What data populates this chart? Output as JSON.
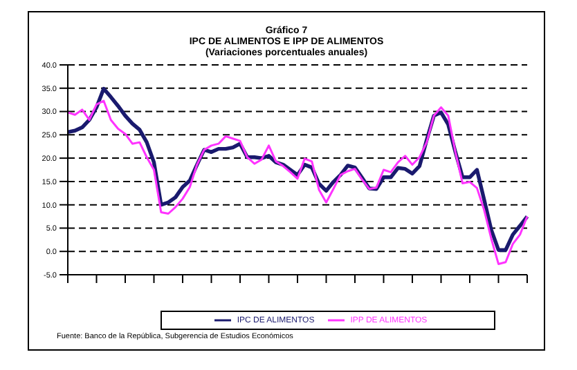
{
  "chart_data": {
    "type": "line",
    "title": "Gráfico 7",
    "subtitle": "IPC DE ALIMENTOS E IPP DE ALIMENTOS\n(Variaciones porcentuales anuales)",
    "categories": [
      null,
      null,
      null,
      null,
      null,
      null,
      null,
      null,
      null,
      null,
      null,
      null,
      null,
      null,
      null,
      null,
      null,
      null,
      null,
      null,
      null,
      null,
      null,
      null,
      null,
      null,
      null,
      null,
      null,
      null,
      null,
      null,
      null,
      null,
      null,
      null,
      null,
      null,
      null,
      null,
      null,
      null,
      null,
      null,
      null,
      null,
      null,
      null,
      null,
      null,
      null,
      null,
      null,
      null,
      null,
      null,
      null,
      null,
      null,
      null,
      null,
      null,
      null,
      null,
      null
    ],
    "series": [
      {
        "name": "IPC DE ALIMENTOS",
        "color": "#1a1a6e",
        "values": [
          25.6,
          25.9,
          26.6,
          28.2,
          30.9,
          34.9,
          33.1,
          31.2,
          29.1,
          27.4,
          26.1,
          23.4,
          19.1,
          10.0,
          10.5,
          11.6,
          13.8,
          15.2,
          18.6,
          21.8,
          21.3,
          22.0,
          22.0,
          22.3,
          23.1,
          20.2,
          20.2,
          20.0,
          20.5,
          19.1,
          18.6,
          17.5,
          16.4,
          18.6,
          18.0,
          14.5,
          13.0,
          14.9,
          16.4,
          18.4,
          18.0,
          15.8,
          13.5,
          13.4,
          15.9,
          15.9,
          17.9,
          17.7,
          16.7,
          18.3,
          23.9,
          29.1,
          29.8,
          27.2,
          21.3,
          15.9,
          15.9,
          17.5,
          11.1,
          4.6,
          0.3,
          0.3,
          3.6,
          5.5,
          7.5
        ]
      },
      {
        "name": "IPP DE ALIMENTOS",
        "color": "#ff33ff",
        "values": [
          29.8,
          29.3,
          30.4,
          28.2,
          31.5,
          32.3,
          28.2,
          26.3,
          25.2,
          23.1,
          23.4,
          20.2,
          17.5,
          8.4,
          8.1,
          9.5,
          11.3,
          13.8,
          18.6,
          21.8,
          22.7,
          23.1,
          24.7,
          24.2,
          23.7,
          20.2,
          18.8,
          19.7,
          22.7,
          19.3,
          18.3,
          17.0,
          15.6,
          19.9,
          19.3,
          13.2,
          10.5,
          13.4,
          16.4,
          17.2,
          17.7,
          15.4,
          13.4,
          13.7,
          17.5,
          17.0,
          19.1,
          20.5,
          18.6,
          20.2,
          23.4,
          29.1,
          30.9,
          29.1,
          21.3,
          14.6,
          14.9,
          13.6,
          8.9,
          2.7,
          -2.7,
          -2.3,
          1.6,
          3.6,
          7.5
        ]
      }
    ],
    "ylim": [
      -5,
      40
    ],
    "yticks": [
      {
        "value": -5,
        "label": "-5.0"
      },
      {
        "value": 0,
        "label": "0.0"
      },
      {
        "value": 5,
        "label": "5.0"
      },
      {
        "value": 10,
        "label": "10.0"
      },
      {
        "value": 15,
        "label": "15.0"
      },
      {
        "value": 20,
        "label": "20.0"
      },
      {
        "value": 25,
        "label": "25.0"
      },
      {
        "value": 30,
        "label": "30.0"
      },
      {
        "value": 35,
        "label": "35.0"
      },
      {
        "value": 40,
        "label": "40.0"
      }
    ],
    "grid": "y",
    "legend": "bottom",
    "marker": "none",
    "line_style": "solid",
    "annotations": [
      "Fuente: Banco de la República, Subgerencia de Estudios Económicos"
    ]
  }
}
